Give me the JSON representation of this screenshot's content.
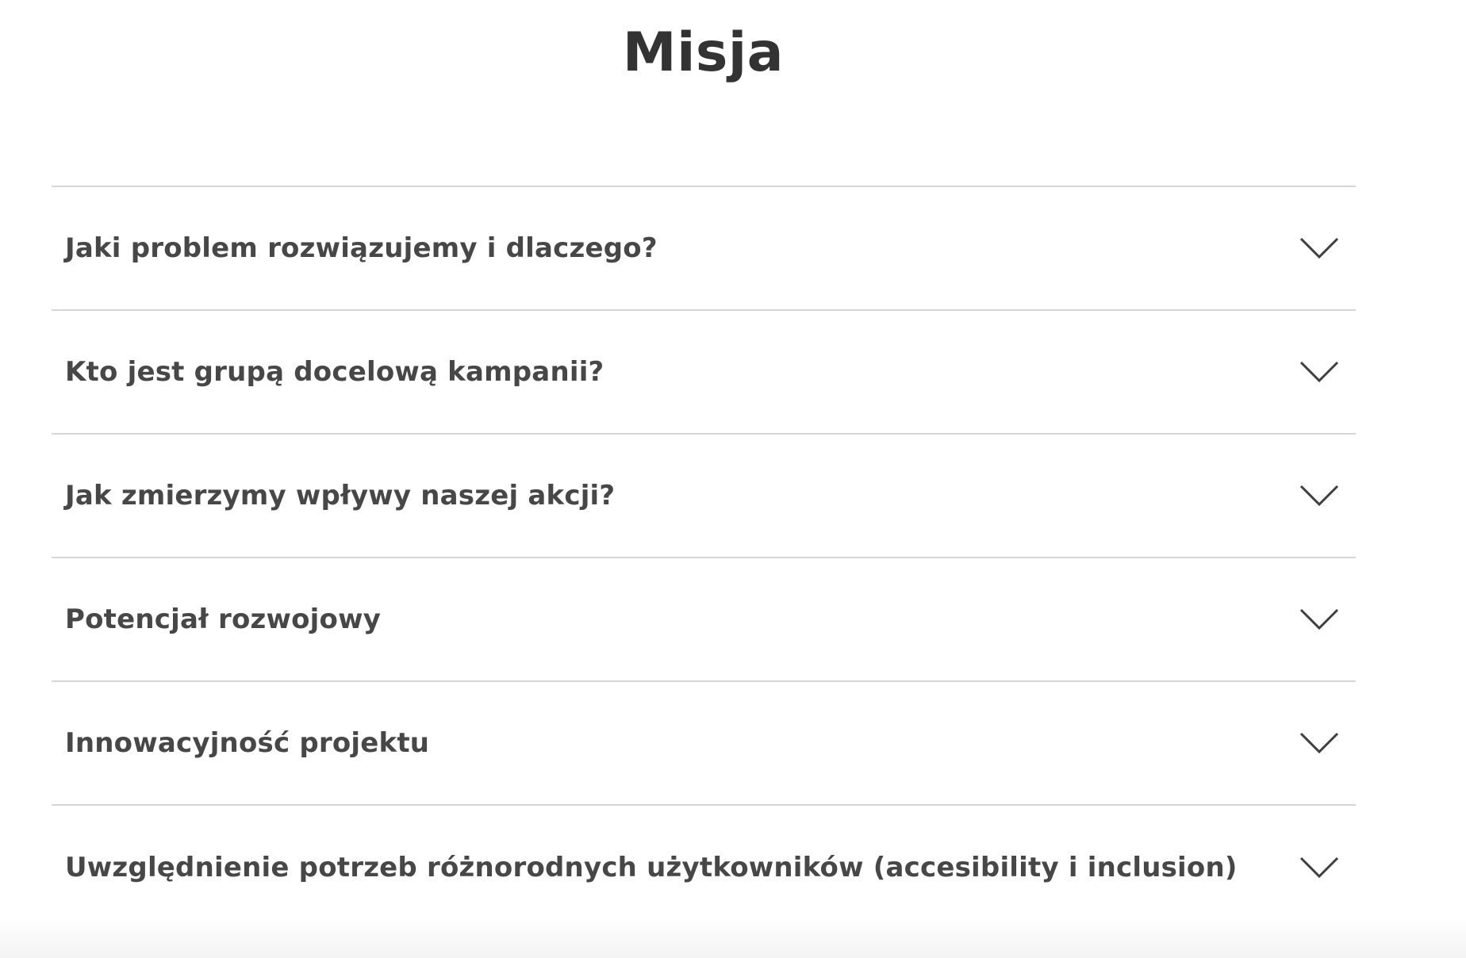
{
  "page": {
    "title": "Misja"
  },
  "accordion": {
    "items": [
      {
        "question": "Jaki problem rozwiązujemy i dlaczego?",
        "expanded": false,
        "icon": "chevron-down-icon"
      },
      {
        "question": "Kto jest grupą docelową kampanii?",
        "expanded": false,
        "icon": "chevron-down-icon"
      },
      {
        "question": "Jak zmierzymy wpływy naszej akcji?",
        "expanded": false,
        "icon": "chevron-down-icon"
      },
      {
        "question": "Potencjał rozwojowy",
        "expanded": false,
        "icon": "chevron-down-icon"
      },
      {
        "question": "Innowacyjność projektu",
        "expanded": false,
        "icon": "chevron-down-icon"
      },
      {
        "question": "Uwzględnienie potrzeb różnorodnych użytkowników (accesibility i inclusion)",
        "expanded": false,
        "icon": "chevron-down-icon"
      }
    ]
  },
  "colors": {
    "text": "#474747",
    "title": "#333333",
    "divider": "#d6d6d6",
    "background": "#ffffff"
  }
}
